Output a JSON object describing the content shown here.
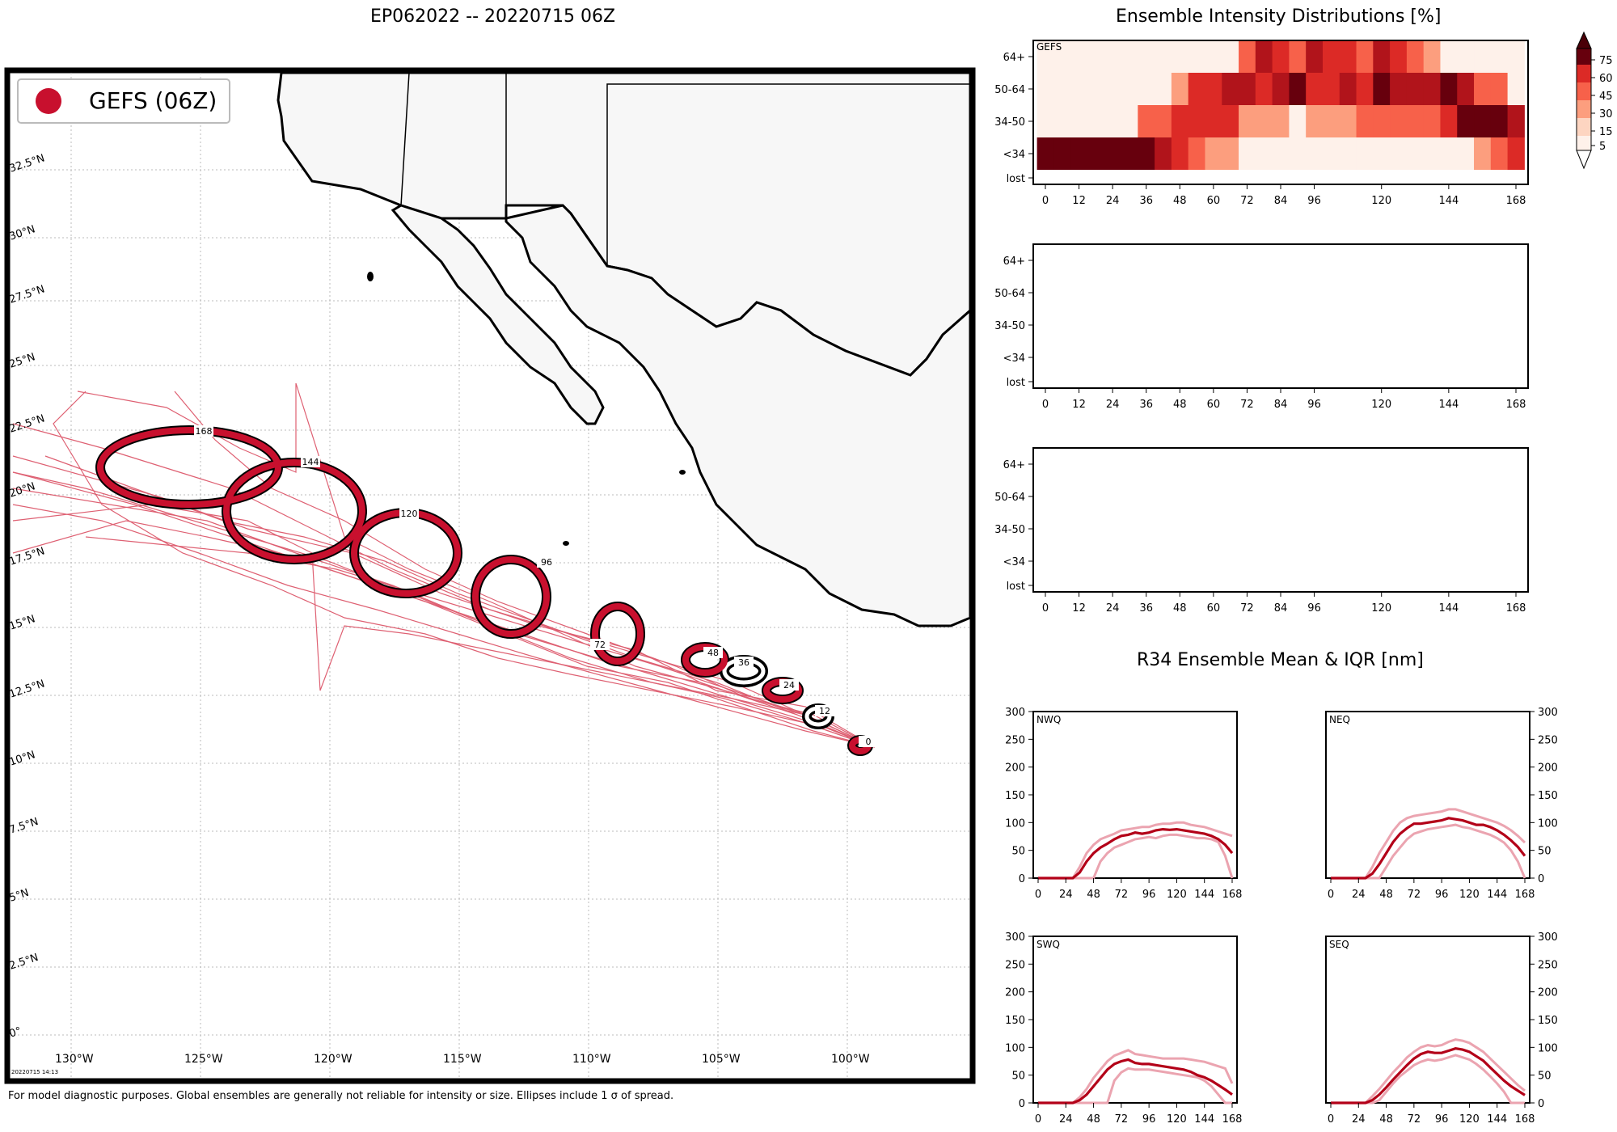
{
  "page_title": "EP062022 -- 20220715 06Z",
  "footnote": "For model diagnostic purposes. Global ensembles are generally not reliable for intensity or size. Ellipses include 1 σ of spread.",
  "map_stamp": "20220715 14:13",
  "map": {
    "legend_label": "GEFS (06Z)",
    "lon_labels": [
      "130°W",
      "125°W",
      "120°W",
      "115°W",
      "110°W",
      "105°W",
      "100°W"
    ],
    "lat_labels": [
      "0°",
      "2.5°N",
      "5°N",
      "7.5°N",
      "10°N",
      "12.5°N",
      "15°N",
      "17.5°N",
      "20°N",
      "22.5°N",
      "25°N",
      "27.5°N",
      "30°N",
      "32.5°N"
    ],
    "track_color": "#c8102e",
    "ellipse_labels": [
      "0",
      "12",
      "24",
      "36",
      "48",
      "72",
      "96",
      "120",
      "144",
      "168"
    ]
  },
  "intensity": {
    "title": "Ensemble Intensity Distributions [%]",
    "panel_label": "GEFS",
    "rows": [
      "64+",
      "50-64",
      "34-50",
      "<34",
      "lost"
    ],
    "xticks": [
      "0",
      "12",
      "24",
      "36",
      "48",
      "60",
      "72",
      "84",
      "96",
      "120",
      "144",
      "168"
    ],
    "colorbar_ticks": [
      "75",
      "60",
      "45",
      "30",
      "15",
      "5"
    ]
  },
  "r34": {
    "title": "R34 Ensemble Mean & IQR [nm]",
    "quadrants": [
      "NWQ",
      "NEQ",
      "SWQ",
      "SEQ"
    ],
    "yticks": [
      "0",
      "50",
      "100",
      "150",
      "200",
      "250",
      "300"
    ],
    "xticks": [
      "0",
      "24",
      "48",
      "72",
      "96",
      "120",
      "144",
      "168"
    ]
  },
  "chart_data": [
    {
      "type": "heatmap",
      "title": "Ensemble Intensity Distributions [%]",
      "model": "GEFS",
      "x": [
        0,
        6,
        12,
        18,
        24,
        30,
        36,
        42,
        48,
        54,
        60,
        66,
        72,
        78,
        84,
        90,
        96,
        102,
        108,
        114,
        120,
        126,
        132,
        138,
        144,
        150,
        156,
        162,
        168
      ],
      "rows": [
        "64+",
        "50-64",
        "34-50",
        "<34",
        "lost"
      ],
      "values": [
        [
          0,
          0,
          0,
          0,
          0,
          0,
          0,
          0,
          0,
          0,
          0,
          0,
          30,
          60,
          45,
          30,
          60,
          45,
          45,
          30,
          60,
          45,
          30,
          15,
          0,
          0,
          0,
          0,
          0
        ],
        [
          0,
          0,
          0,
          0,
          0,
          0,
          0,
          0,
          15,
          45,
          45,
          60,
          60,
          45,
          60,
          75,
          45,
          45,
          60,
          45,
          75,
          60,
          60,
          60,
          75,
          60,
          30,
          30,
          0
        ],
        [
          0,
          0,
          0,
          0,
          0,
          0,
          30,
          30,
          45,
          45,
          45,
          45,
          15,
          15,
          15,
          0,
          15,
          15,
          15,
          30,
          30,
          30,
          30,
          30,
          45,
          75,
          75,
          75,
          60
        ],
        [
          100,
          100,
          100,
          100,
          100,
          100,
          75,
          60,
          45,
          30,
          15,
          15,
          0,
          0,
          0,
          0,
          0,
          0,
          0,
          0,
          0,
          0,
          0,
          0,
          0,
          0,
          15,
          30,
          45
        ],
        [
          0,
          0,
          0,
          0,
          0,
          0,
          0,
          0,
          0,
          0,
          0,
          0,
          0,
          0,
          0,
          0,
          0,
          0,
          0,
          0,
          0,
          0,
          0,
          0,
          0,
          0,
          0,
          0,
          0
        ]
      ],
      "colorbar": [
        5,
        15,
        30,
        45,
        60,
        75
      ]
    },
    {
      "type": "line",
      "title": "NWQ",
      "x": [
        0,
        6,
        12,
        18,
        24,
        30,
        36,
        42,
        48,
        54,
        60,
        66,
        72,
        78,
        84,
        90,
        96,
        102,
        108,
        114,
        120,
        126,
        132,
        138,
        144,
        150,
        156,
        162,
        168
      ],
      "ylim": [
        0,
        300
      ],
      "series": [
        {
          "values": [
            0,
            0,
            0,
            0,
            0,
            0,
            10,
            30,
            45,
            55,
            62,
            70,
            76,
            78,
            82,
            80,
            82,
            86,
            88,
            87,
            88,
            86,
            84,
            82,
            80,
            76,
            70,
            60,
            45
          ]
        },
        {
          "values": [
            0,
            0,
            0,
            0,
            0,
            0,
            0,
            0,
            0,
            30,
            45,
            55,
            60,
            65,
            70,
            72,
            74,
            72,
            76,
            78,
            78,
            76,
            74,
            72,
            72,
            70,
            65,
            40,
            0
          ]
        },
        {
          "values": [
            0,
            0,
            0,
            0,
            0,
            0,
            20,
            45,
            60,
            70,
            75,
            80,
            86,
            88,
            90,
            92,
            92,
            96,
            98,
            98,
            100,
            100,
            96,
            94,
            92,
            88,
            84,
            80,
            76
          ]
        }
      ]
    },
    {
      "type": "line",
      "title": "NEQ",
      "x": [
        0,
        6,
        12,
        18,
        24,
        30,
        36,
        42,
        48,
        54,
        60,
        66,
        72,
        78,
        84,
        90,
        96,
        102,
        108,
        114,
        120,
        126,
        132,
        138,
        144,
        150,
        156,
        162,
        168
      ],
      "ylim": [
        0,
        300
      ],
      "series": [
        {
          "values": [
            0,
            0,
            0,
            0,
            0,
            0,
            8,
            25,
            45,
            65,
            80,
            90,
            98,
            98,
            100,
            102,
            104,
            108,
            106,
            104,
            100,
            96,
            96,
            92,
            86,
            78,
            68,
            56,
            40
          ]
        },
        {
          "values": [
            0,
            0,
            0,
            0,
            0,
            0,
            0,
            0,
            20,
            40,
            55,
            70,
            80,
            84,
            88,
            90,
            92,
            94,
            96,
            92,
            90,
            86,
            82,
            78,
            72,
            64,
            50,
            30,
            0
          ]
        },
        {
          "values": [
            0,
            0,
            0,
            0,
            0,
            0,
            20,
            45,
            65,
            85,
            100,
            108,
            112,
            114,
            116,
            118,
            120,
            124,
            124,
            120,
            116,
            112,
            108,
            104,
            100,
            94,
            86,
            76,
            64
          ]
        }
      ]
    },
    {
      "type": "line",
      "title": "SWQ",
      "x": [
        0,
        6,
        12,
        18,
        24,
        30,
        36,
        42,
        48,
        54,
        60,
        66,
        72,
        78,
        84,
        90,
        96,
        102,
        108,
        114,
        120,
        126,
        132,
        138,
        144,
        150,
        156,
        162,
        168
      ],
      "ylim": [
        0,
        300
      ],
      "series": [
        {
          "values": [
            0,
            0,
            0,
            0,
            0,
            0,
            5,
            15,
            30,
            45,
            60,
            70,
            75,
            78,
            72,
            70,
            70,
            68,
            66,
            64,
            62,
            60,
            56,
            50,
            46,
            40,
            32,
            24,
            15
          ]
        },
        {
          "values": [
            0,
            0,
            0,
            0,
            0,
            0,
            0,
            0,
            0,
            0,
            0,
            40,
            55,
            62,
            60,
            60,
            60,
            58,
            56,
            54,
            52,
            50,
            48,
            46,
            40,
            30,
            15,
            0,
            0
          ]
        },
        {
          "values": [
            0,
            0,
            0,
            0,
            0,
            0,
            10,
            25,
            45,
            60,
            75,
            85,
            90,
            95,
            88,
            86,
            84,
            82,
            80,
            80,
            80,
            80,
            78,
            76,
            74,
            70,
            66,
            62,
            35
          ]
        }
      ]
    },
    {
      "type": "line",
      "title": "SEQ",
      "x": [
        0,
        6,
        12,
        18,
        24,
        30,
        36,
        42,
        48,
        54,
        60,
        66,
        72,
        78,
        84,
        90,
        96,
        102,
        108,
        114,
        120,
        126,
        132,
        138,
        144,
        150,
        156,
        162,
        168
      ],
      "ylim": [
        0,
        300
      ],
      "series": [
        {
          "values": [
            0,
            0,
            0,
            0,
            0,
            0,
            5,
            15,
            28,
            42,
            55,
            68,
            80,
            88,
            92,
            90,
            90,
            94,
            98,
            96,
            92,
            84,
            76,
            64,
            52,
            40,
            30,
            22,
            14
          ]
        },
        {
          "values": [
            0,
            0,
            0,
            0,
            0,
            0,
            0,
            5,
            20,
            35,
            48,
            58,
            68,
            74,
            78,
            76,
            78,
            82,
            86,
            82,
            78,
            70,
            60,
            48,
            35,
            20,
            0,
            0,
            0
          ]
        },
        {
          "values": [
            0,
            0,
            0,
            0,
            0,
            0,
            12,
            25,
            40,
            55,
            68,
            82,
            92,
            100,
            104,
            102,
            104,
            110,
            114,
            112,
            108,
            100,
            92,
            80,
            68,
            56,
            44,
            32,
            22
          ]
        }
      ]
    }
  ]
}
